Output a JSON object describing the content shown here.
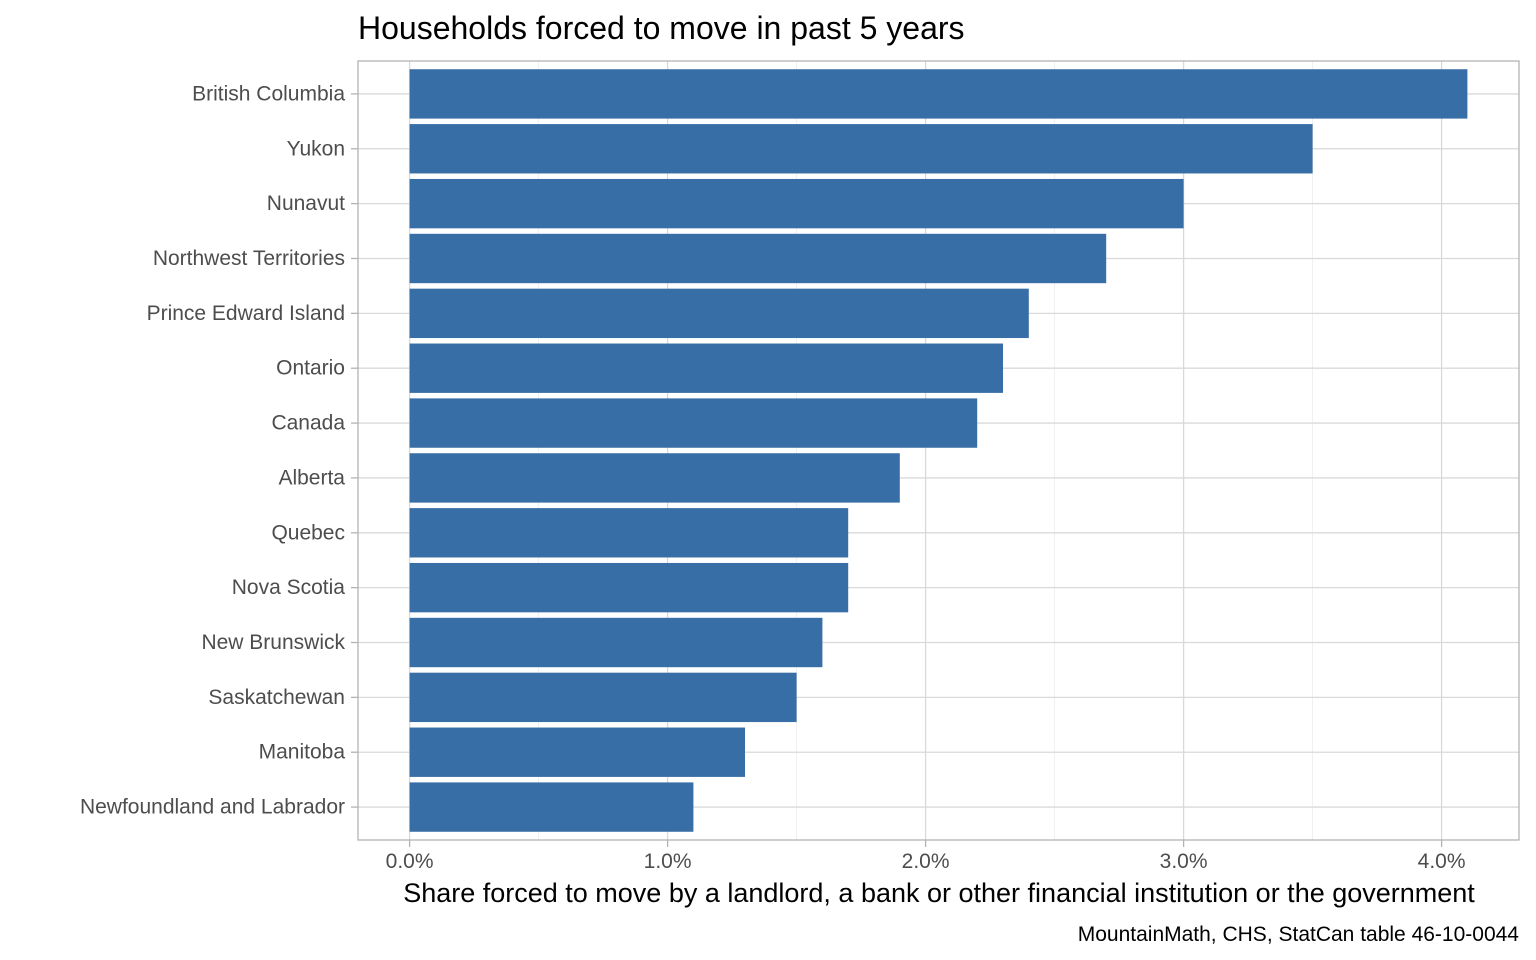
{
  "chart_data": {
    "type": "bar",
    "orientation": "horizontal",
    "title": "Households forced to move in past 5 years",
    "xlabel": "Share forced to move by a landlord, a bank or other financial institution or the government",
    "ylabel": "",
    "caption": "MountainMath, CHS, StatCan table 46-10-0044",
    "bar_color": "#386ea6",
    "xlim": [
      -0.002,
      0.043
    ],
    "x_ticks": [
      0.0,
      0.01,
      0.02,
      0.03,
      0.04
    ],
    "x_tick_labels": [
      "0.0%",
      "1.0%",
      "2.0%",
      "3.0%",
      "4.0%"
    ],
    "grid": true,
    "legend": "none",
    "categories": [
      "British Columbia",
      "Yukon",
      "Nunavut",
      "Northwest Territories",
      "Prince Edward Island",
      "Ontario",
      "Canada",
      "Alberta",
      "Quebec",
      "Nova Scotia",
      "New Brunswick",
      "Saskatchewan",
      "Manitoba",
      "Newfoundland and Labrador"
    ],
    "values": [
      0.041,
      0.035,
      0.03,
      0.027,
      0.024,
      0.023,
      0.022,
      0.019,
      0.017,
      0.017,
      0.016,
      0.015,
      0.013,
      0.011
    ]
  }
}
